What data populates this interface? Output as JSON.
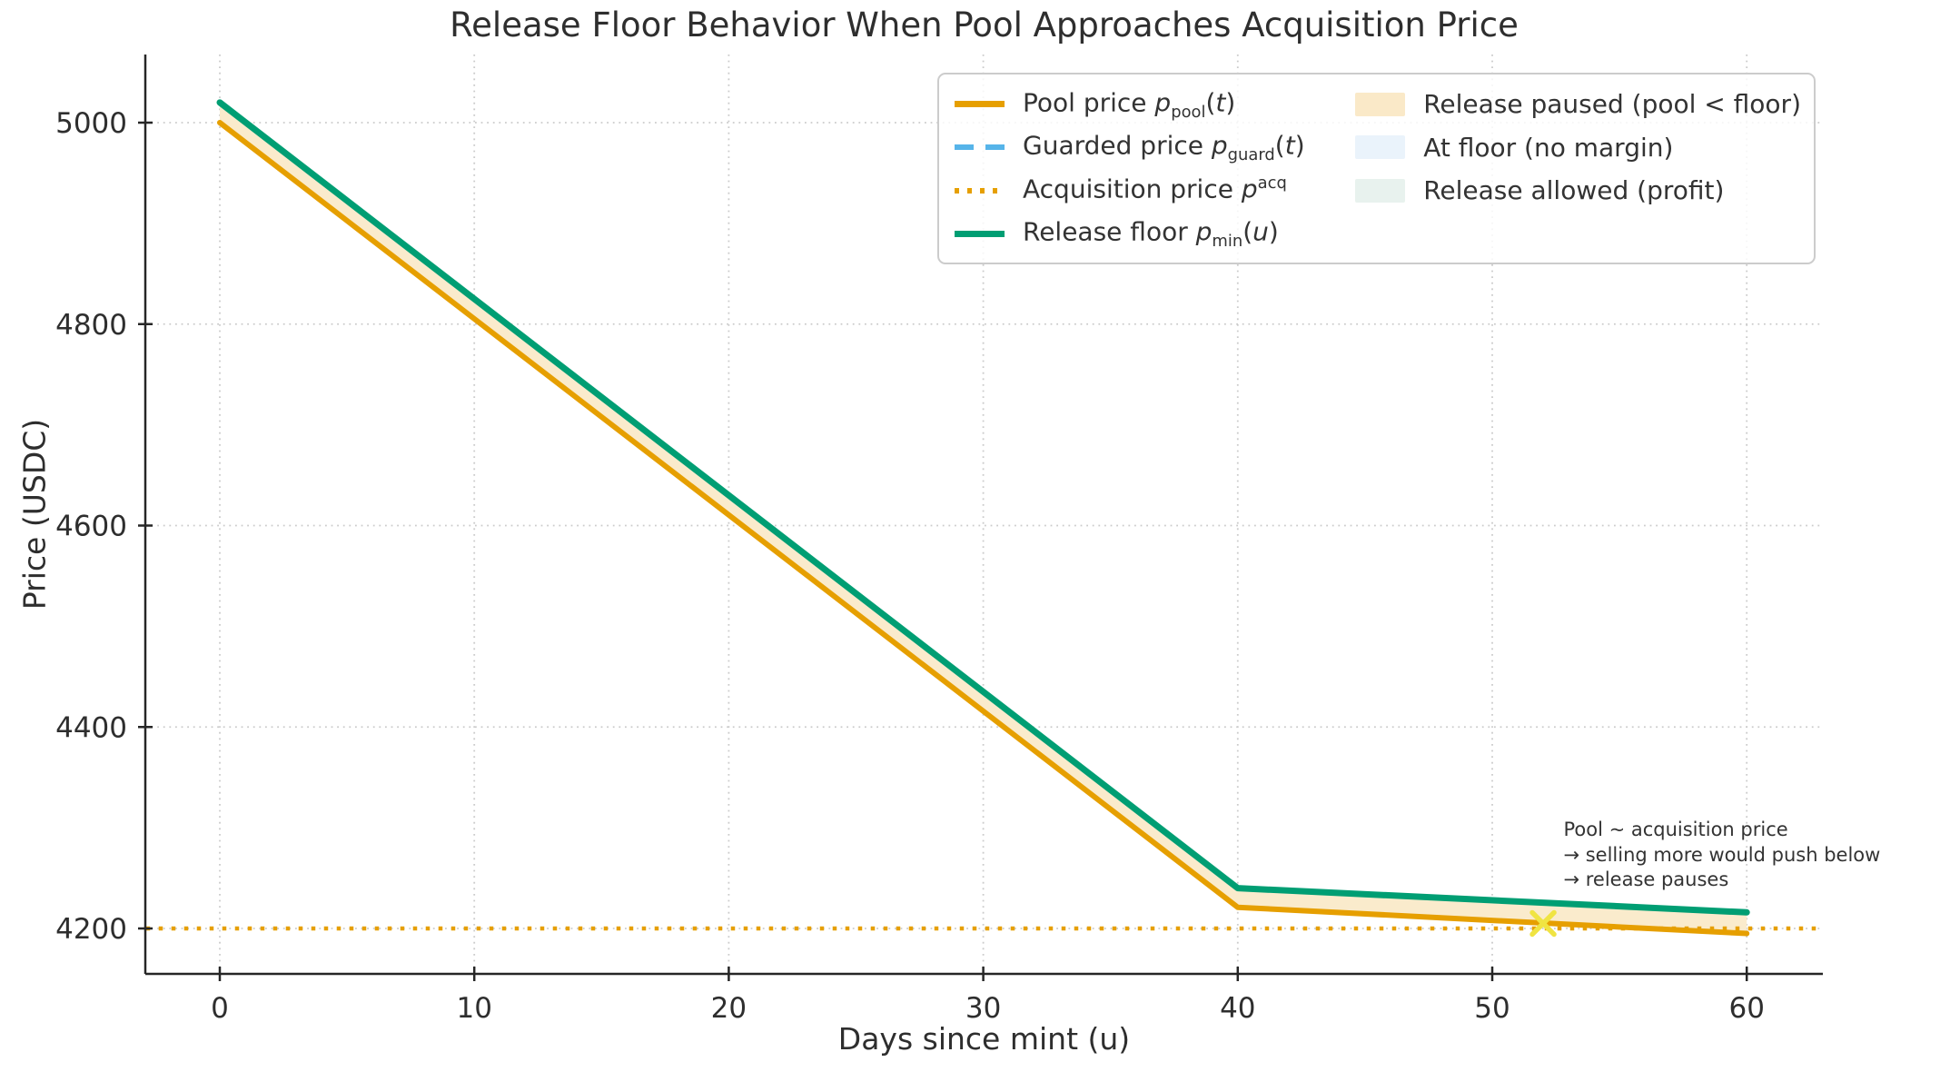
{
  "title": "Release Floor Behavior When Pool Approaches Acquisition Price",
  "axes": {
    "xlabel": "Days since mint (u)",
    "ylabel": "Price (USDC)"
  },
  "legend": {
    "lines": [
      {
        "text": "Pool price ",
        "var": "p",
        "sub": "pool",
        "sup": "",
        "open": "(",
        "argvar": "t",
        "close": ")",
        "color": "#E69F00",
        "style": "solid"
      },
      {
        "text": "Guarded price ",
        "var": "p",
        "sub": "guard",
        "sup": "",
        "open": "(",
        "argvar": "t",
        "close": ")",
        "color": "#56B4E9",
        "style": "dashed"
      },
      {
        "text": "Acquisition price ",
        "var": "p",
        "sub": "",
        "sup": "acq",
        "open": "",
        "argvar": "",
        "close": "",
        "color": "#E69F00",
        "style": "dotted"
      },
      {
        "text": "Release floor ",
        "var": "p",
        "sub": "min",
        "sup": "",
        "open": "(",
        "argvar": "u",
        "close": ")",
        "color": "#009E73",
        "style": "solid"
      }
    ],
    "patches": [
      {
        "label": "Release paused (pool < floor)",
        "color": "#FAE9C8"
      },
      {
        "label": "At floor (no margin)",
        "color": "#EAF3FB"
      },
      {
        "label": "Release allowed (profit)",
        "color": "#E8F2EE"
      }
    ]
  },
  "chart_data": {
    "type": "line",
    "title": "Release Floor Behavior When Pool Approaches Acquisition Price",
    "xlabel": "Days since mint (u)",
    "ylabel": "Price (USDC)",
    "xlim": [
      -2.9,
      63.0
    ],
    "ylim": [
      4155,
      5068
    ],
    "xticks": [
      0,
      10,
      20,
      30,
      40,
      50,
      60
    ],
    "yticks": [
      4200,
      4400,
      4600,
      4800,
      5000
    ],
    "grid": true,
    "legend_position": "upper right",
    "series": [
      {
        "id": "guarded_price",
        "name": "Guarded price p_guard(t)",
        "color": "#56B4E9",
        "style": "dashed",
        "width": 4,
        "x": [
          0,
          40,
          60
        ],
        "y": [
          5000,
          4221,
          4195
        ],
        "note": "coincident with pool price, hidden beneath it"
      },
      {
        "id": "pool_price",
        "name": "Pool price p_pool(t)",
        "color": "#E69F00",
        "style": "solid",
        "width": 6,
        "x": [
          0,
          40,
          60
        ],
        "y": [
          5000,
          4221,
          4195
        ]
      },
      {
        "id": "acquisition_price",
        "name": "Acquisition price p^acq",
        "color": "#E69F00",
        "style": "dotted",
        "width": 4.5,
        "x": [
          -2.9,
          63.0
        ],
        "y": [
          4200,
          4200
        ]
      },
      {
        "id": "release_floor",
        "name": "Release floor p_min(u)",
        "color": "#009E73",
        "style": "solid",
        "width": 7,
        "x": [
          0,
          40,
          60
        ],
        "y": [
          5020,
          4240,
          4216
        ]
      }
    ],
    "fill_between": {
      "label": "Release paused (pool < floor)",
      "upper": "release_floor",
      "lower": "pool_price",
      "color": "#FAEBCC"
    },
    "marker": {
      "symbol": "x",
      "x": 52,
      "y": 4205,
      "color": "#F0E442",
      "size": 24
    },
    "annotation": {
      "text_lines": [
        "Pool ~ acquisition price",
        "→ selling more would push below",
        "→ release pauses"
      ],
      "anchor_x": 52.8,
      "anchor_y": 4310
    }
  }
}
